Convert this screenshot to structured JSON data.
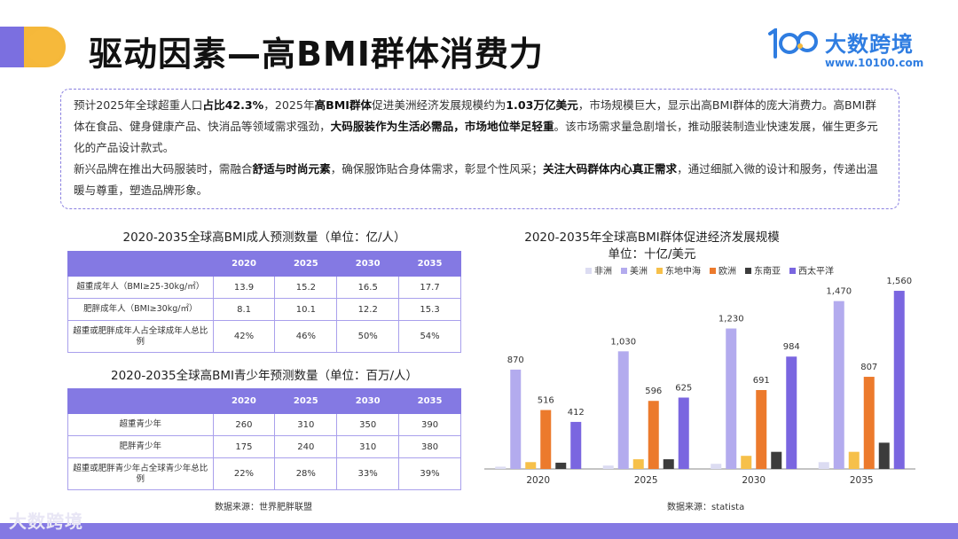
{
  "title": "驱动因素—高BMI群体消费力",
  "logo": {
    "name": "大数跨境",
    "url": "www.10100.com",
    "footer_name": "大数跨境"
  },
  "colors": {
    "accent": "#8479e3",
    "brand_blue": "#2f7de1",
    "highlight_yellow": "#f6b93b"
  },
  "summary": {
    "p1_a": "预计2025年全球超重人口",
    "p1_b": "占比42.3%",
    "p1_c": "，2025年",
    "p1_d": "高BMI群体",
    "p1_e": "促进美洲经济发展规模约为",
    "p1_f": "1.03万亿美元",
    "p1_g": "，市场规模巨大，显示出高BMI群体的庞大消费力。高BMI群体在食品、健身健康产品、快消品等领域需求强劲，",
    "p1_h": "大码服装作为生活必需品，市场地位举足轻重",
    "p1_i": "。该市场需求量急剧增长，推动服装制造业快速发展，催生更多元化的产品设计款式。",
    "p2_a": "新兴品牌在推出大码服装时，需融合",
    "p2_b": "舒适与时尚元素",
    "p2_c": "，确保服饰贴合身体需求，彰显个性风采；",
    "p2_d": "关注大码群体内心真正需求",
    "p2_e": "，通过细腻入微的设计和服务，传递出温暖与尊重，塑造品牌形象。"
  },
  "table1": {
    "title": "2020-2035全球高BMI成人预测数量（单位：亿/人）",
    "headers": [
      "",
      "2020",
      "2025",
      "2030",
      "2035"
    ],
    "rows": [
      [
        "超重成年人（BMI≥25-30kg/㎡）",
        "13.9",
        "15.2",
        "16.5",
        "17.7"
      ],
      [
        "肥胖成年人（BMI≥30kg/㎡）",
        "8.1",
        "10.1",
        "12.2",
        "15.3"
      ],
      [
        "超重或肥胖成年人占全球成年人总比例",
        "42%",
        "46%",
        "50%",
        "54%"
      ]
    ]
  },
  "table2": {
    "title": "2020-2035全球高BMI青少年预测数量（单位：百万/人）",
    "headers": [
      "",
      "2020",
      "2025",
      "2030",
      "2035"
    ],
    "rows": [
      [
        "超重青少年",
        "260",
        "310",
        "350",
        "390"
      ],
      [
        "肥胖青少年",
        "175",
        "240",
        "310",
        "380"
      ],
      [
        "超重或肥胖青少年占全球青少年总比例",
        "22%",
        "28%",
        "33%",
        "39%"
      ]
    ]
  },
  "source_left": "数据来源：世界肥胖联盟",
  "source_right": "数据来源：statista",
  "chart_data": {
    "type": "bar",
    "title": "2020-2035年全球高BMI群体促进经济发展规模",
    "subtitle": "单位：十亿/美元",
    "categories": [
      "2020",
      "2025",
      "2030",
      "2035"
    ],
    "legend_position": "top",
    "grid": false,
    "ylim": [
      0,
      1700
    ],
    "series": [
      {
        "name": "非洲",
        "color": "#dcdcf2",
        "values": [
          20,
          30,
          45,
          60
        ],
        "labels": [
          "",
          "",
          "",
          ""
        ]
      },
      {
        "name": "美洲",
        "color": "#b3abee",
        "values": [
          870,
          1030,
          1230,
          1470
        ],
        "labels": [
          "870",
          "1,030",
          "1,230",
          "1,470"
        ]
      },
      {
        "name": "东地中海",
        "color": "#f6c04a",
        "values": [
          60,
          85,
          115,
          150
        ],
        "labels": [
          "",
          "",
          "",
          ""
        ]
      },
      {
        "name": "欧洲",
        "color": "#ec7a2c",
        "values": [
          516,
          596,
          691,
          807
        ],
        "labels": [
          "516",
          "596",
          "691",
          "807"
        ]
      },
      {
        "name": "东南亚",
        "color": "#3c3c3c",
        "values": [
          55,
          85,
          150,
          230
        ],
        "labels": [
          "",
          "",
          "",
          ""
        ]
      },
      {
        "name": "西太平洋",
        "color": "#7a66e0",
        "values": [
          412,
          625,
          984,
          1560
        ],
        "labels": [
          "412",
          "625",
          "984",
          "1,560"
        ]
      }
    ]
  }
}
